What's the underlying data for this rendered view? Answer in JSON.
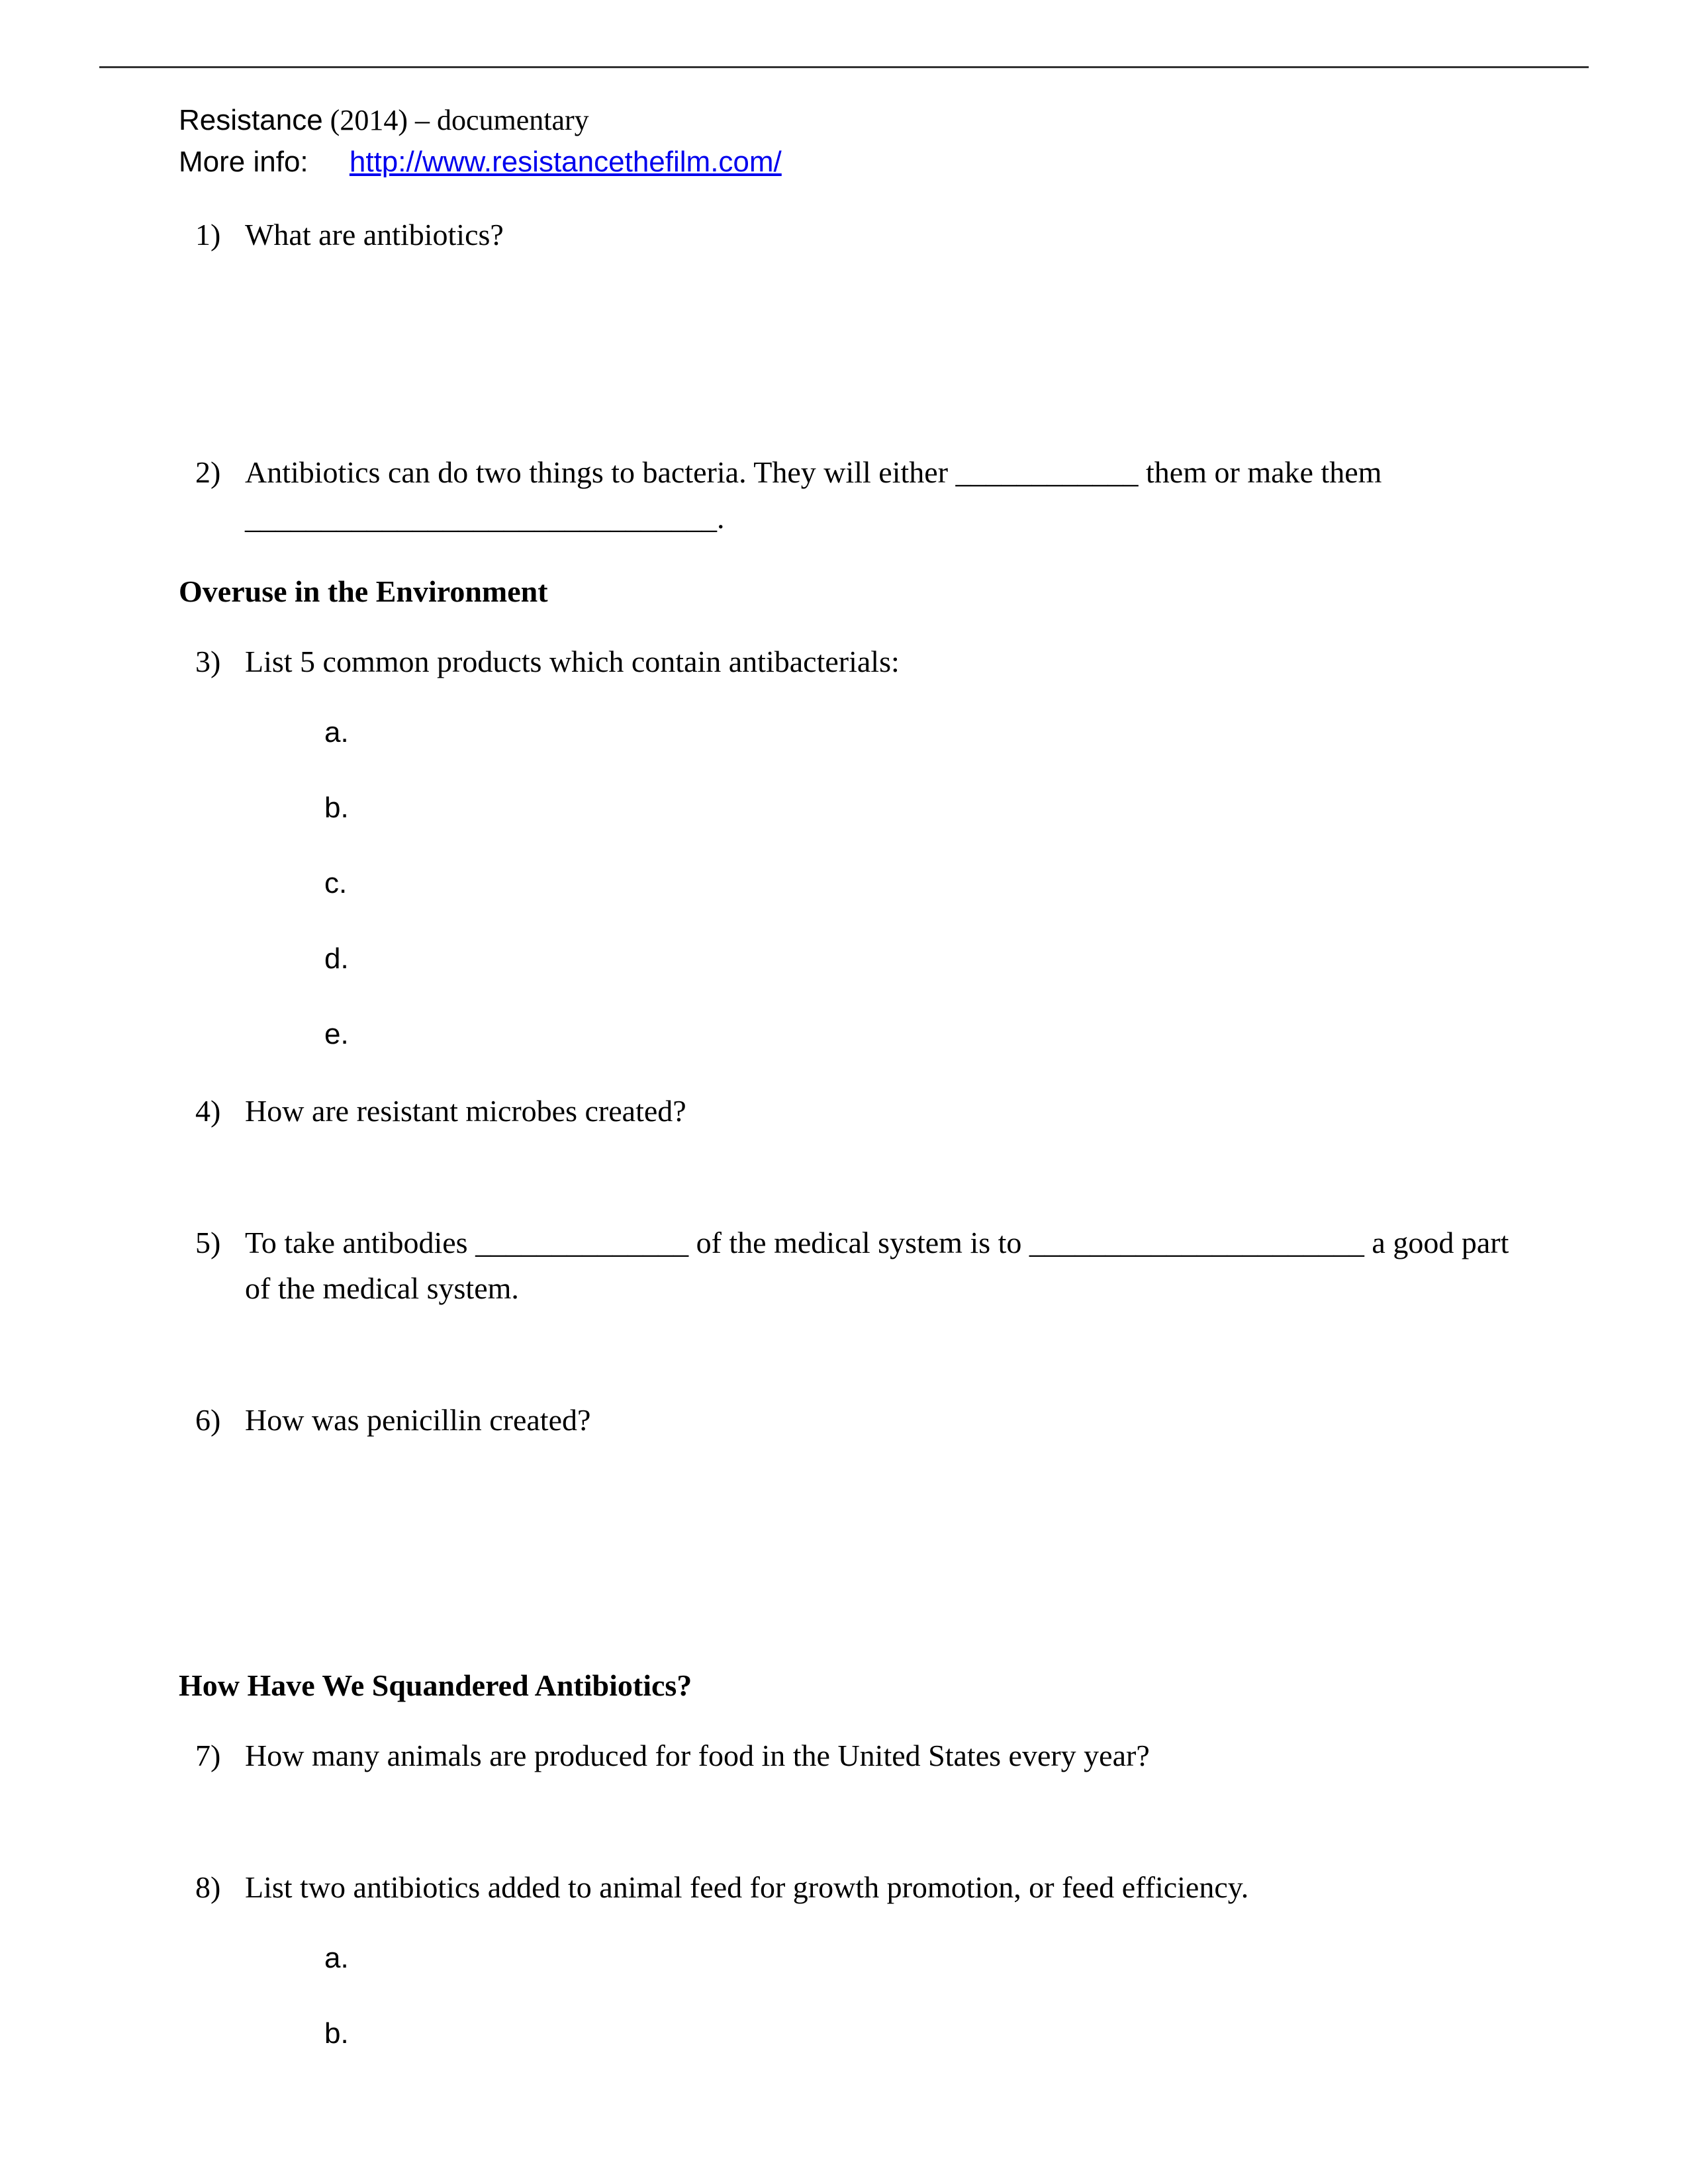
{
  "header": {
    "title": "Resistance",
    "year_suffix": " (2014) – documentary",
    "more_info_label": "More info:",
    "link_text": "http://www.resistancethefilm.com/",
    "link_href": "http://www.resistancethefilm.com/"
  },
  "questions": [
    {
      "number": "1)",
      "text": "What are antibiotics?"
    },
    {
      "number": "2)",
      "text": "Antibiotics can do two things to bacteria. They will either ____________ them or make them _______________________________."
    }
  ],
  "section1_heading": "Overuse in the Environment",
  "questions2": [
    {
      "number": "3)",
      "text": "List 5 common products which contain antibacterials:",
      "sub_items": [
        "a.",
        "b.",
        "c.",
        "d.",
        "e."
      ]
    },
    {
      "number": "4)",
      "text": "How are resistant microbes created?"
    },
    {
      "number": "5)",
      "text": "To take antibodies ______________ of the medical system is to ______________________ a good part of the medical system."
    },
    {
      "number": "6)",
      "text": "How was penicillin created?"
    }
  ],
  "section2_heading": "How Have We Squandered Antibiotics?",
  "questions3": [
    {
      "number": "7)",
      "text": "How many animals are produced for food in the United States every year?"
    },
    {
      "number": "8)",
      "text": "List two antibiotics added to animal feed for growth promotion, or feed efficiency.",
      "sub_items": [
        "a.",
        "b."
      ]
    }
  ],
  "colors": {
    "text": "#000000",
    "link": "#0000ee",
    "rule": "#333333",
    "background": "#ffffff"
  }
}
